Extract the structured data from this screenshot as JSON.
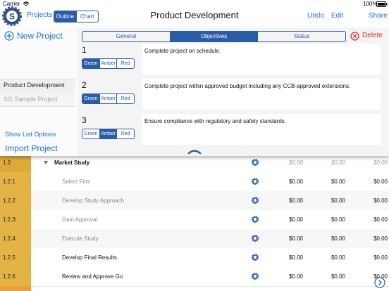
{
  "status_bar": {
    "carrier": "Carrier",
    "battery": "100%"
  },
  "nav": {
    "projects": "Projects",
    "view_modes": [
      "Outline",
      "Chart"
    ],
    "title": "Product Development",
    "actions": [
      "Undo",
      "Edit",
      "Share"
    ]
  },
  "sidebar": {
    "new_project": "New Project",
    "projects": [
      "Product Development",
      "SG Sample Project"
    ],
    "show_list_options": "Show List Options",
    "import_project": "Import Project"
  },
  "popover": {
    "tabs": [
      "General",
      "Objectives",
      "Status"
    ],
    "delete": "Delete",
    "status_options": [
      "Green",
      "Amber",
      "Red"
    ],
    "objectives": [
      {
        "number": 1,
        "text": "Complete project on schedule.",
        "status": "Green"
      },
      {
        "number": 2,
        "text": "Complete project within approved budget including any CCB-approved extensions.",
        "status": "Green"
      },
      {
        "number": 3,
        "text": "Ensure compliance with regulatory and safety standards.",
        "status": "Amber"
      }
    ]
  },
  "table": {
    "rows": [
      {
        "id": "1.2",
        "name": "Market Study",
        "values": [
          "$0.00",
          "$0.00",
          "$0.00"
        ]
      },
      {
        "id": "1.2.1",
        "name": "Select Firm",
        "values": [
          "$0.00",
          "$0.00",
          "$0.00"
        ]
      },
      {
        "id": "1.2.2",
        "name": "Develop Study Approach",
        "values": [
          "$0.00",
          "$0.00",
          "$0.00"
        ]
      },
      {
        "id": "1.2.3",
        "name": "Gain Approval",
        "values": [
          "$0.00",
          "$0.00",
          "$0.00"
        ]
      },
      {
        "id": "1.2.4",
        "name": "Execute Study",
        "values": [
          "$0.00",
          "$0.00",
          "$0.00"
        ]
      },
      {
        "id": "1.2.5",
        "name": "Develop Final Results",
        "values": [
          "$0.00",
          "$0.00",
          "$0.00"
        ]
      },
      {
        "id": "1.2.6",
        "name": "Review and Approve Go",
        "values": [
          "$0.00",
          "$0.00",
          "$0.00"
        ]
      }
    ]
  }
}
